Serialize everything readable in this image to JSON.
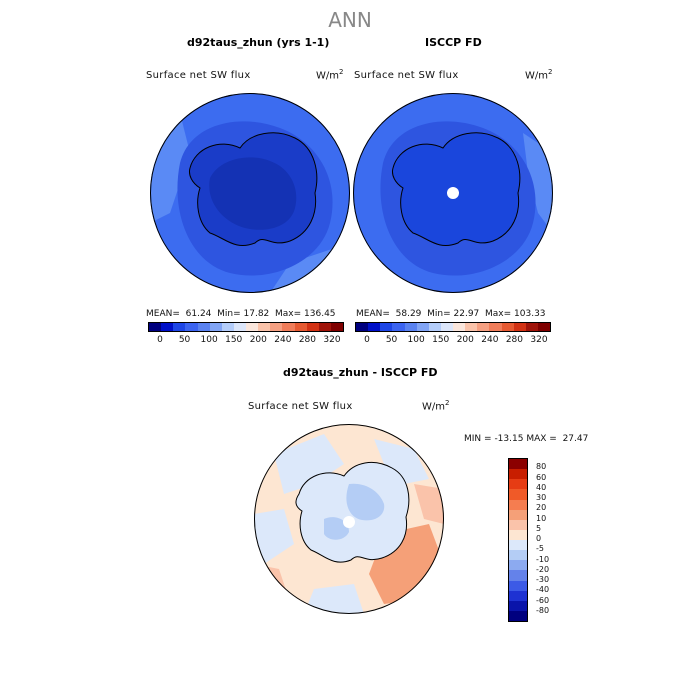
{
  "main_title": "ANN",
  "panels": [
    {
      "title": "d92taus_zhun (yrs 1-1)",
      "variable": "Surface net SW flux",
      "units_base": "W/m",
      "units_exp": "2",
      "mean_label": "MEAN=",
      "mean": "61.24",
      "min_label": "Min=",
      "min": "17.82",
      "max_label": "Max=",
      "max": "136.45"
    },
    {
      "title": "ISCCP FD",
      "variable": "Surface net SW flux",
      "units_base": "W/m",
      "units_exp": "2",
      "mean_label": "MEAN=",
      "mean": "58.29",
      "min_label": "Min=",
      "min": "22.97",
      "max_label": "Max=",
      "max": "103.33"
    }
  ],
  "colorbar_top": {
    "colors": [
      "#00007f",
      "#0010c8",
      "#1e46e6",
      "#3c64f0",
      "#5a82f0",
      "#82a5f5",
      "#b4cdfa",
      "#dce6fa",
      "#fae6dc",
      "#fac3aa",
      "#f5a082",
      "#f07d5a",
      "#e65a32",
      "#d23214",
      "#a0140a",
      "#7f0000"
    ],
    "ticks": [
      "0",
      "50",
      "100",
      "150",
      "200",
      "240",
      "280",
      "320"
    ]
  },
  "diff_panel": {
    "title": "d92taus_zhun - ISCCP FD",
    "variable": "Surface net SW flux",
    "units_base": "W/m",
    "units_exp": "2",
    "min_label": "MIN =",
    "min": "-13.15",
    "max_label": "MAX =",
    "max": "27.47"
  },
  "colorbar_diff": {
    "colors": [
      "#8b0000",
      "#c81e00",
      "#e63c14",
      "#f05a28",
      "#f57d50",
      "#f5a078",
      "#fac3aa",
      "#fde6d2",
      "#dce8fa",
      "#b4cdf5",
      "#8caaf0",
      "#6482ea",
      "#3c5ae6",
      "#1e32d2",
      "#0a14aa",
      "#00007f"
    ],
    "labels": [
      "80",
      "60",
      "40",
      "30",
      "20",
      "10",
      "5",
      "0",
      "-5",
      "-10",
      "-20",
      "-30",
      "-40",
      "-60",
      "-80"
    ]
  }
}
